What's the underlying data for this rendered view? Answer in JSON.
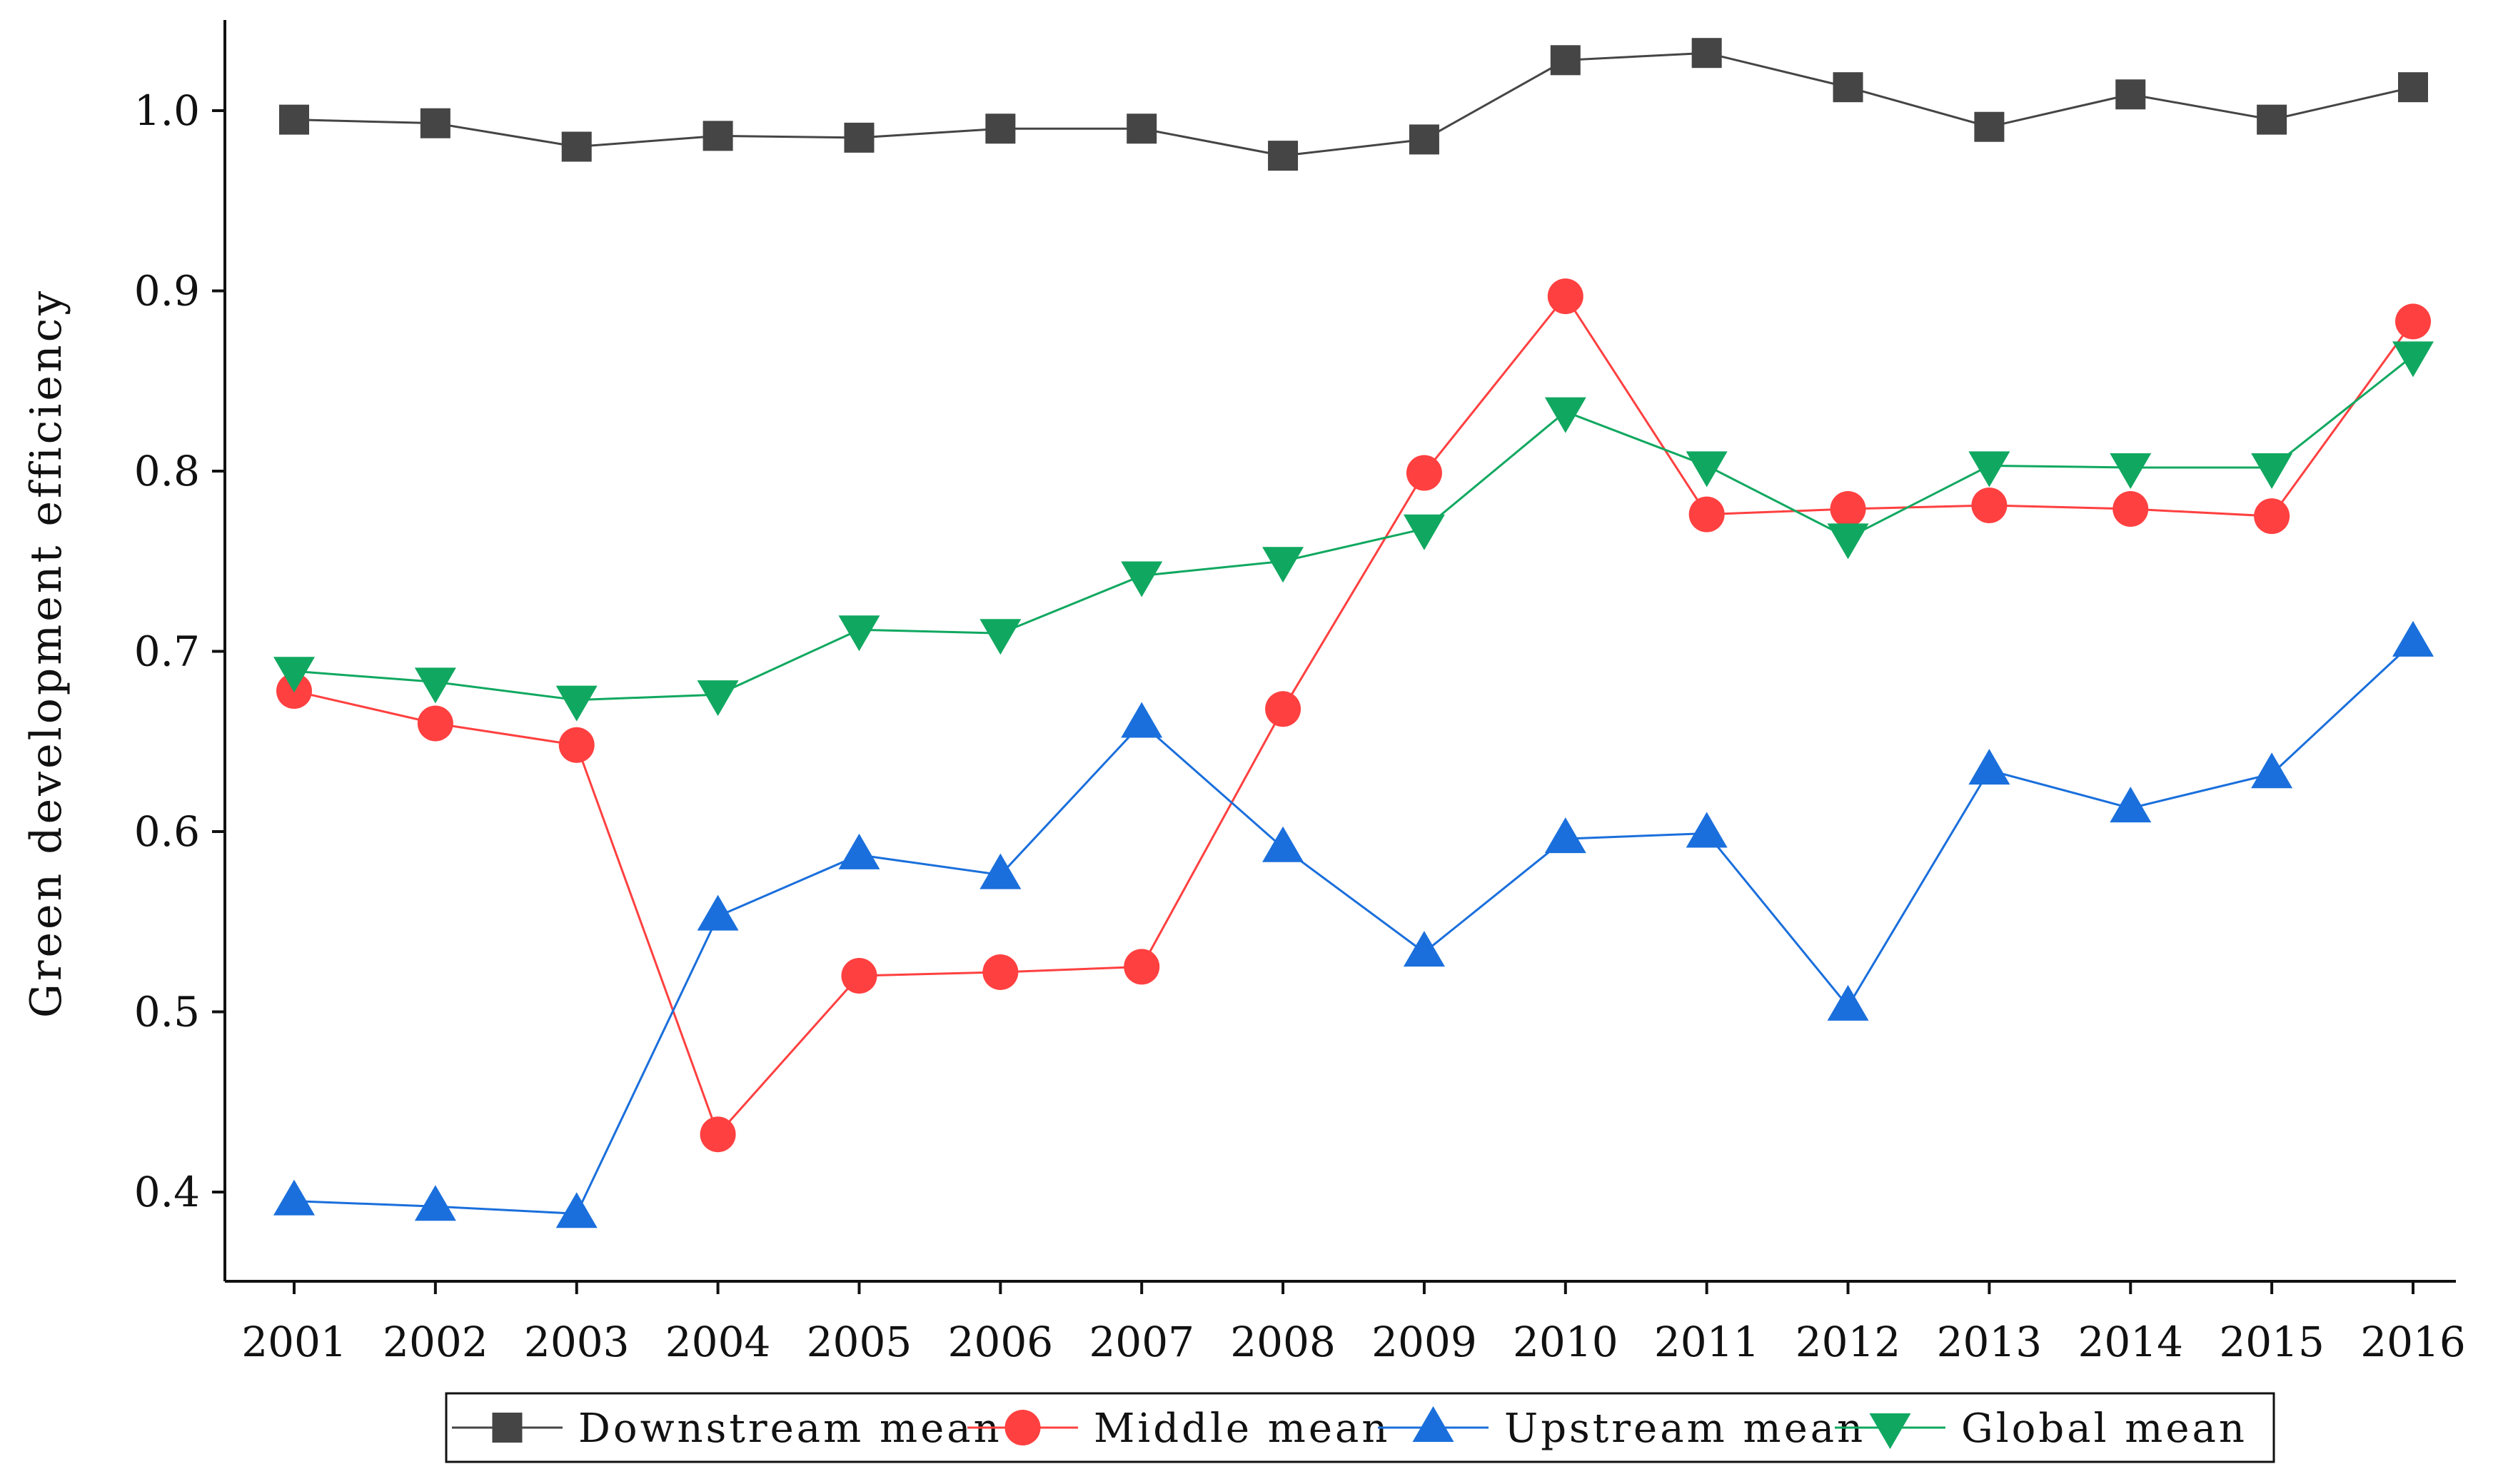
{
  "chart_data": {
    "type": "line",
    "title": "",
    "xlabel": "",
    "ylabel": "Green development efficiency",
    "x": [
      "2001",
      "2002",
      "2003",
      "2004",
      "2005",
      "2006",
      "2007",
      "2008",
      "2009",
      "2010",
      "2011",
      "2012",
      "2013",
      "2014",
      "2015",
      "2016"
    ],
    "ylim": [
      0.35,
      1.05
    ],
    "yticks": [
      0.4,
      0.5,
      0.6,
      0.7,
      0.8,
      0.9,
      1.0
    ],
    "ytick_labels": [
      "0.4",
      "0.5",
      "0.6",
      "0.7",
      "0.8",
      "0.9",
      "1.0"
    ],
    "grid": false,
    "legend_position": "bottom",
    "series": [
      {
        "name": "Downstream mean",
        "marker": "square",
        "color": "#454545",
        "values": [
          0.995,
          0.993,
          0.98,
          0.986,
          0.985,
          0.99,
          0.99,
          0.975,
          0.984,
          1.028,
          1.032,
          1.013,
          0.991,
          1.009,
          0.995,
          1.013
        ]
      },
      {
        "name": "Middle mean",
        "marker": "circle",
        "color": "#ff4040",
        "values": [
          0.678,
          0.66,
          0.648,
          0.432,
          0.52,
          0.522,
          0.525,
          0.668,
          0.799,
          0.897,
          0.776,
          0.779,
          0.781,
          0.779,
          0.775,
          0.883
        ]
      },
      {
        "name": "Upstream mean",
        "marker": "triangle-up",
        "color": "#1a6fdc",
        "values": [
          0.395,
          0.392,
          0.388,
          0.553,
          0.587,
          0.576,
          0.66,
          0.591,
          0.533,
          0.596,
          0.599,
          0.503,
          0.634,
          0.613,
          0.632,
          0.705
        ]
      },
      {
        "name": "Global mean",
        "marker": "triangle-down",
        "color": "#10a860",
        "values": [
          0.689,
          0.683,
          0.673,
          0.676,
          0.712,
          0.71,
          0.742,
          0.75,
          0.768,
          0.833,
          0.803,
          0.763,
          0.803,
          0.802,
          0.802,
          0.864
        ]
      }
    ]
  }
}
